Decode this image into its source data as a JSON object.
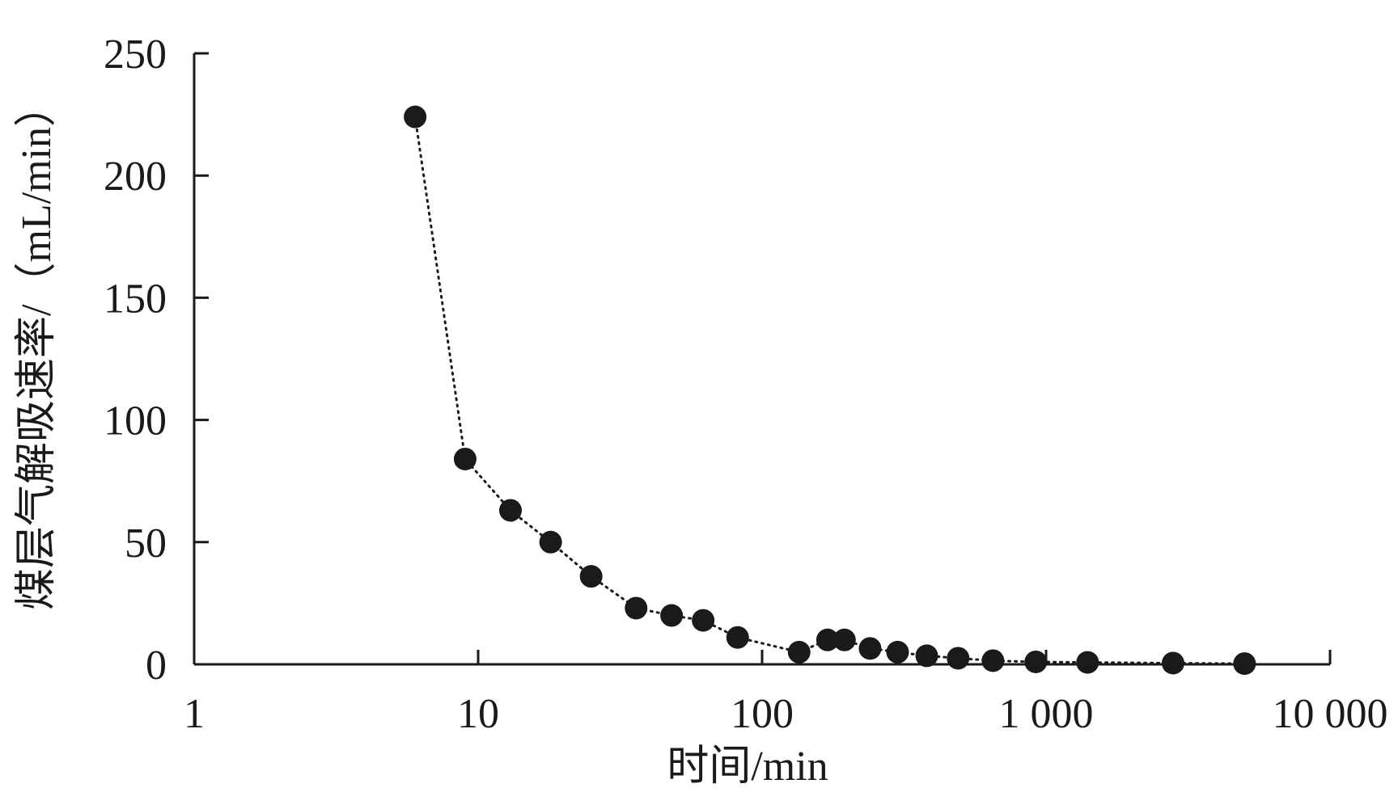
{
  "chart_data": {
    "type": "scatter",
    "xscale": "log",
    "xlabel": "时间/min",
    "ylabel": "煤层气解吸速率/（mL/min）",
    "xlim": [
      1,
      10000
    ],
    "ylim": [
      0,
      250
    ],
    "xticks": [
      {
        "value": 1,
        "label": "1"
      },
      {
        "value": 10,
        "label": "10"
      },
      {
        "value": 100,
        "label": "100"
      },
      {
        "value": 1000,
        "label": "1 000"
      },
      {
        "value": 10000,
        "label": "10 000"
      }
    ],
    "yticks": [
      {
        "value": 0,
        "label": "0"
      },
      {
        "value": 50,
        "label": "50"
      },
      {
        "value": 100,
        "label": "100"
      },
      {
        "value": 150,
        "label": "150"
      },
      {
        "value": 200,
        "label": "200"
      },
      {
        "value": 250,
        "label": "250"
      }
    ],
    "connect_line": "dotted",
    "marker_color": "#1a1a1a",
    "points": [
      {
        "x": 6,
        "y": 224
      },
      {
        "x": 9,
        "y": 84
      },
      {
        "x": 13,
        "y": 63
      },
      {
        "x": 18,
        "y": 50
      },
      {
        "x": 25,
        "y": 36
      },
      {
        "x": 36,
        "y": 23
      },
      {
        "x": 48,
        "y": 20
      },
      {
        "x": 62,
        "y": 18
      },
      {
        "x": 82,
        "y": 11
      },
      {
        "x": 135,
        "y": 5
      },
      {
        "x": 170,
        "y": 10
      },
      {
        "x": 195,
        "y": 10
      },
      {
        "x": 240,
        "y": 6.5
      },
      {
        "x": 300,
        "y": 5
      },
      {
        "x": 380,
        "y": 3.5
      },
      {
        "x": 490,
        "y": 2.5
      },
      {
        "x": 650,
        "y": 1.5
      },
      {
        "x": 920,
        "y": 1
      },
      {
        "x": 1400,
        "y": 0.8
      },
      {
        "x": 2800,
        "y": 0.5
      },
      {
        "x": 5000,
        "y": 0.3
      }
    ]
  }
}
